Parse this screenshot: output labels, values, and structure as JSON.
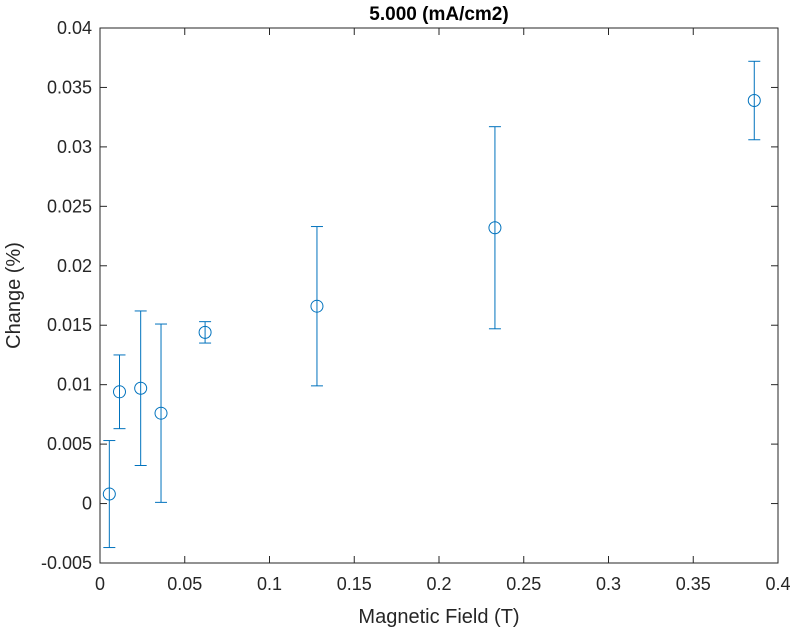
{
  "chart_data": {
    "type": "scatter",
    "title": "5.000 (mA/cm2)",
    "xlabel": "Magnetic Field (T)",
    "ylabel": "Change (%)",
    "xlim": [
      0,
      0.4
    ],
    "ylim": [
      -0.005,
      0.04
    ],
    "xticks": [
      "0",
      "0.05",
      "0.1",
      "0.15",
      "0.2",
      "0.25",
      "0.3",
      "0.35",
      "0.4"
    ],
    "yticks": [
      "-0.005",
      "0",
      "0.005",
      "0.01",
      "0.015",
      "0.02",
      "0.025",
      "0.03",
      "0.035",
      "0.04"
    ],
    "grid": false,
    "marker": "circle",
    "color": "#0072BD",
    "series": [
      {
        "points": [
          {
            "x": 0.0055,
            "y": 0.0008,
            "err_low": 0.0045,
            "err_high": 0.0045
          },
          {
            "x": 0.0115,
            "y": 0.0094,
            "err_low": 0.0031,
            "err_high": 0.0031
          },
          {
            "x": 0.024,
            "y": 0.0097,
            "err_low": 0.0065,
            "err_high": 0.0065
          },
          {
            "x": 0.036,
            "y": 0.0076,
            "err_low": 0.0075,
            "err_high": 0.0075
          },
          {
            "x": 0.062,
            "y": 0.0144,
            "err_low": 0.0009,
            "err_high": 0.0009
          },
          {
            "x": 0.128,
            "y": 0.0166,
            "err_low": 0.0067,
            "err_high": 0.0067
          },
          {
            "x": 0.233,
            "y": 0.0232,
            "err_low": 0.0085,
            "err_high": 0.0085
          },
          {
            "x": 0.386,
            "y": 0.0339,
            "err_low": 0.0033,
            "err_high": 0.0033
          }
        ]
      }
    ]
  }
}
